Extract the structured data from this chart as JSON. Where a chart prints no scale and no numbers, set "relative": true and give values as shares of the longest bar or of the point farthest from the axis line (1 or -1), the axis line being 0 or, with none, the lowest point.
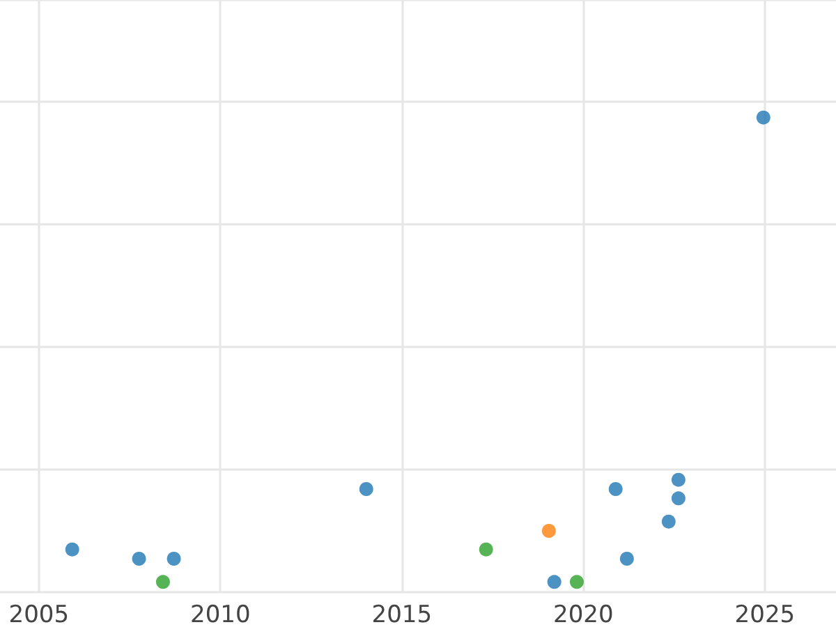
{
  "chart_data": {
    "type": "scatter",
    "relative": true,
    "xlim": [
      2003.93,
      2026.96
    ],
    "xticks": [
      2005,
      2010,
      2015,
      2020,
      2025
    ],
    "grid": true,
    "marker": "circle",
    "tick_labels": "x",
    "series": [
      {
        "color": "#1f77b4",
        "x": [
          2005.92,
          2007.76,
          2008.72,
          2014.02,
          2019.2,
          2020.89,
          2021.2,
          2022.35,
          2022.62,
          2022.62,
          2024.96
        ],
        "values": [
          0.07,
          0.05,
          0.05,
          0.2,
          0,
          0.2,
          0.05,
          0.13,
          0.22,
          0.18,
          1
        ]
      },
      {
        "color": "#ff7f0e",
        "x": [
          2019.05
        ],
        "values": [
          0.11
        ]
      },
      {
        "color": "#2ca02c",
        "x": [
          2008.42,
          2017.32,
          2019.82
        ],
        "values": [
          0,
          0.07,
          0
        ]
      }
    ]
  }
}
